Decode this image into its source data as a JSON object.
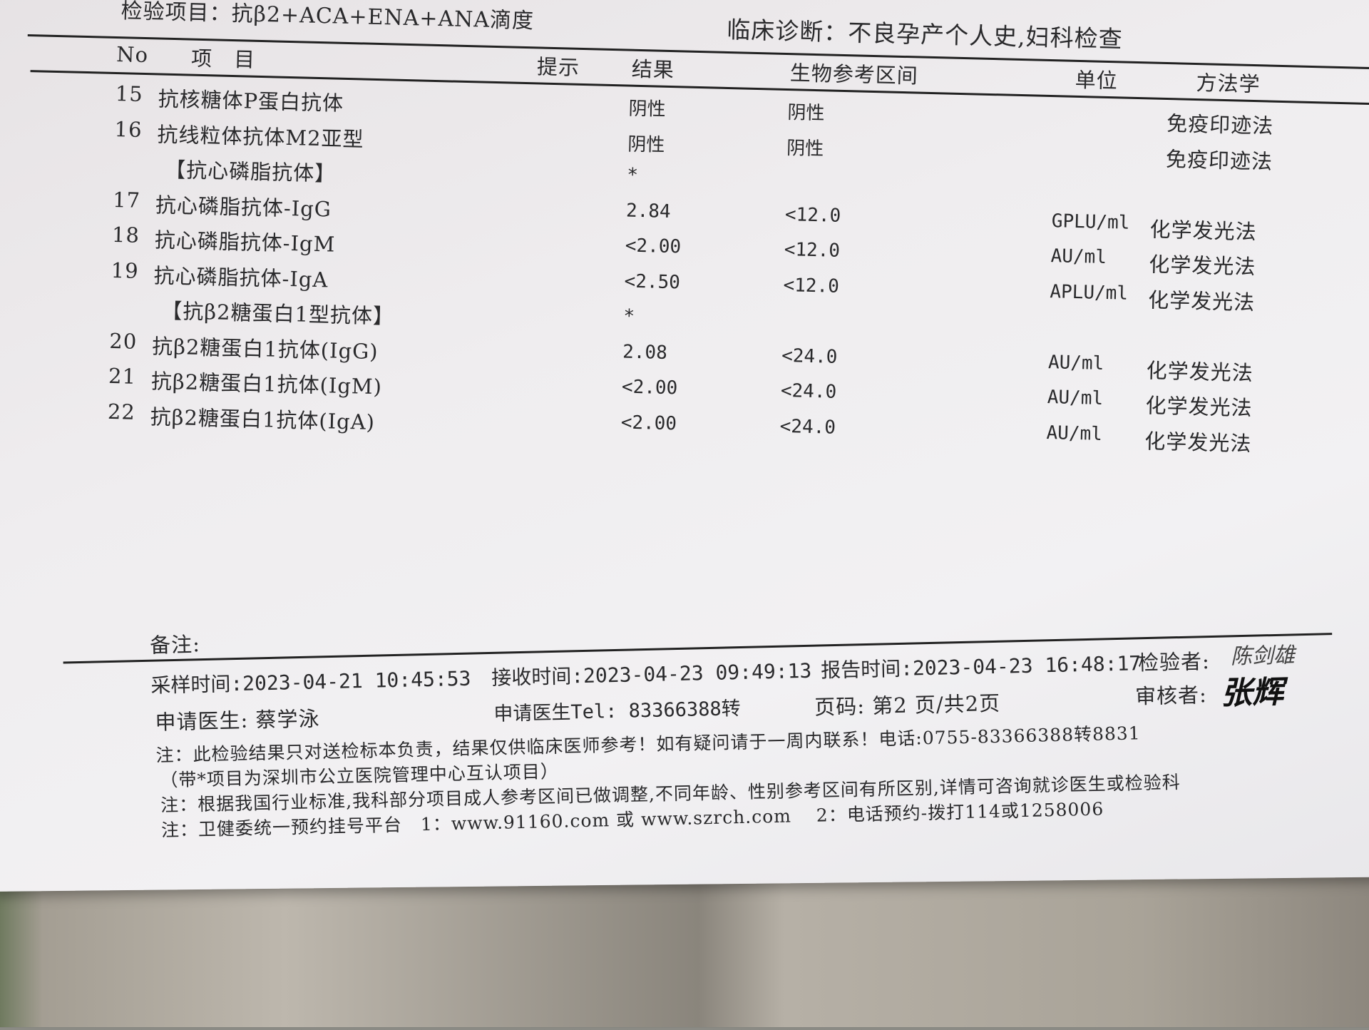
{
  "header": {
    "test_items": "检验项目：抗β2+ACA+ENA+ANA滴度",
    "diagnosis": "临床诊断：不良孕产个人史,妇科检查"
  },
  "table": {
    "columns": {
      "no": "No",
      "item": "项　目",
      "hint": "提示",
      "result": "结果",
      "reference": "生物参考区间",
      "unit": "单位",
      "method": "方法学"
    },
    "rows": [
      {
        "no": "15",
        "item": "抗核糖体P蛋白抗体",
        "result": "阴性",
        "reference": "阴性",
        "unit": "",
        "method": "免疫印迹法"
      },
      {
        "no": "16",
        "item": "抗线粒体抗体M2亚型",
        "result": "阴性",
        "reference": "阴性",
        "unit": "",
        "method": "免疫印迹法"
      },
      {
        "no": "",
        "item": "【抗心磷脂抗体】",
        "result": "*",
        "reference": "",
        "unit": "",
        "method": ""
      },
      {
        "no": "17",
        "item": "抗心磷脂抗体-IgG",
        "result": "2.84",
        "reference": "<12.0",
        "unit": "GPLU/ml",
        "method": "化学发光法"
      },
      {
        "no": "18",
        "item": "抗心磷脂抗体-IgM",
        "result": "<2.00",
        "reference": "<12.0",
        "unit": "AU/ml",
        "method": "化学发光法"
      },
      {
        "no": "19",
        "item": "抗心磷脂抗体-IgA",
        "result": "<2.50",
        "reference": "<12.0",
        "unit": "APLU/ml",
        "method": "化学发光法"
      },
      {
        "no": "",
        "item": "【抗β2糖蛋白1型抗体】",
        "result": "*",
        "reference": "",
        "unit": "",
        "method": ""
      },
      {
        "no": "20",
        "item": "抗β2糖蛋白1抗体(IgG)",
        "result": "2.08",
        "reference": "<24.0",
        "unit": "AU/ml",
        "method": "化学发光法"
      },
      {
        "no": "21",
        "item": "抗β2糖蛋白1抗体(IgM)",
        "result": "<2.00",
        "reference": "<24.0",
        "unit": "AU/ml",
        "method": "化学发光法"
      },
      {
        "no": "22",
        "item": "抗β2糖蛋白1抗体(IgA)",
        "result": "<2.00",
        "reference": "<24.0",
        "unit": "AU/ml",
        "method": "化学发光法"
      }
    ]
  },
  "footer": {
    "remarks": "备注:",
    "sample_time": "采样时间:2023-04-21 10:45:53",
    "receive_time": "接收时间:2023-04-23 09:49:13",
    "report_time": "报告时间:2023-04-23 16:48:17",
    "tester_label": "检验者:",
    "tester_signature": "陈剑雄",
    "reviewer_label": "审核者:",
    "reviewer_signature": "张辉",
    "doctor": "申请医生: 蔡学泳",
    "doctor_tel": "申请医生Tel: 83366388转",
    "page": "页码: 第2 页/共2页",
    "notes": [
      "注：此检验结果只对送检标本负责，结果仅供临床医师参考！如有疑问请于一周内联系！电话:0755-83366388转8831",
      "（带*项目为深圳市公立医院管理中心互认项目）",
      "注：根据我国行业标准,我科部分项目成人参考区间已做调整,不同年龄、性别参考区间有所区别,详情可咨询就诊医生或检验科",
      "注：卫健委统一预约挂号平台　1：www.91160.com 或 www.szrch.com　 2：电话预约-拨打114或1258006"
    ]
  }
}
